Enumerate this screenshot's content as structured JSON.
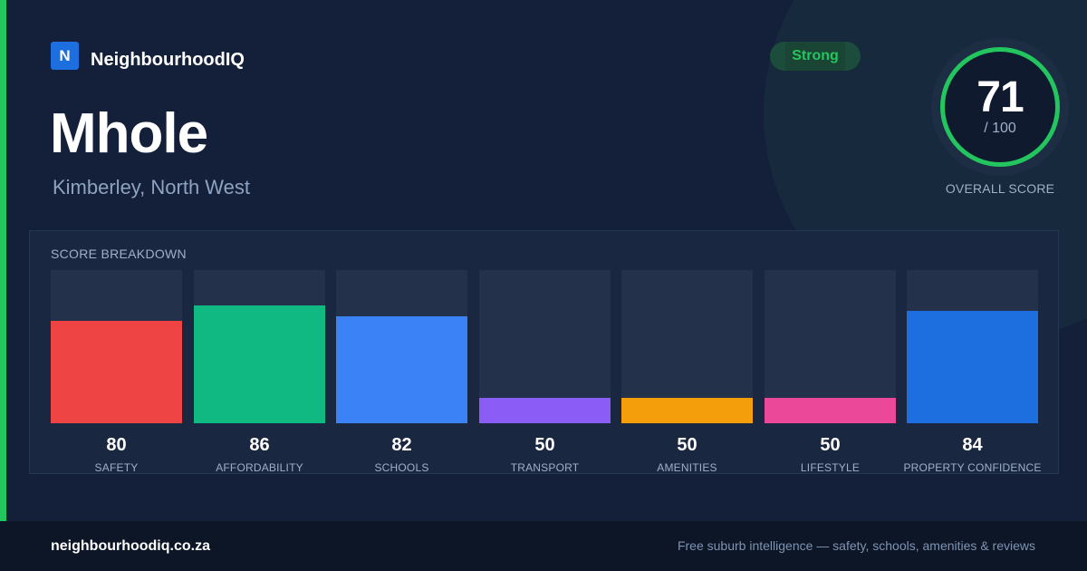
{
  "brand": {
    "logo_letter": "N",
    "name": "NeighbourhoodIQ"
  },
  "suburb": {
    "name": "Mhole",
    "location": "Kimberley, North West"
  },
  "badge": {
    "label": "Strong",
    "color": "#22c55e"
  },
  "overall": {
    "score": "71",
    "max": "/ 100",
    "label": "OVERALL SCORE",
    "ring_color": "#22c55e"
  },
  "breakdown": {
    "title": "SCORE BREAKDOWN",
    "items": [
      {
        "label": "SAFETY",
        "value": "80",
        "score": 80,
        "color": "#ef4444"
      },
      {
        "label": "AFFORDABILITY",
        "value": "86",
        "score": 86,
        "color": "#10b981"
      },
      {
        "label": "SCHOOLS",
        "value": "82",
        "score": 82,
        "color": "#3b82f6"
      },
      {
        "label": "TRANSPORT",
        "value": "50",
        "score": 50,
        "color": "#8b5cf6"
      },
      {
        "label": "AMENITIES",
        "value": "50",
        "score": 50,
        "color": "#f59e0b"
      },
      {
        "label": "LIFESTYLE",
        "value": "50",
        "score": 50,
        "color": "#ec4899"
      },
      {
        "label": "PROPERTY CONFIDENCE",
        "value": "84",
        "score": 84,
        "color": "#1d6fe0"
      }
    ]
  },
  "footer": {
    "url": "neighbourhoodiq.co.za",
    "tagline": "Free suburb intelligence — safety, schools, amenities & reviews"
  },
  "colors": {
    "accent": "#22c55e",
    "background": "#142039",
    "footer": "#0c1627"
  }
}
